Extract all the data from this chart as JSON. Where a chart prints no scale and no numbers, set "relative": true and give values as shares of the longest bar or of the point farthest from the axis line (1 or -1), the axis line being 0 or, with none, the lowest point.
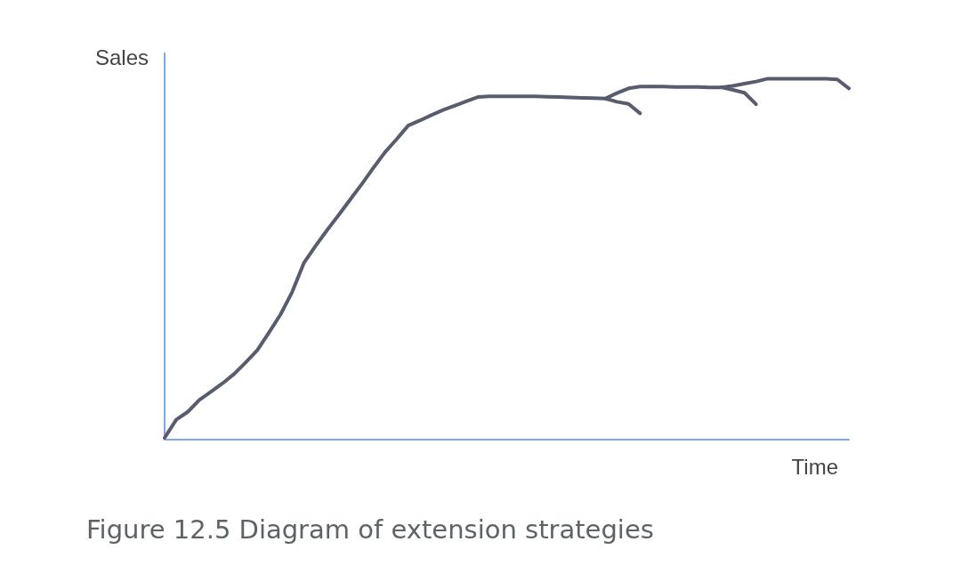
{
  "chart_data": {
    "type": "line",
    "title": "Figure 12.5 Diagram of extension strategies",
    "xlabel": "Time",
    "ylabel": "Sales",
    "relative": true,
    "grid": false,
    "marker": "none",
    "line_style": "solid",
    "categories": [
      null,
      null,
      null,
      null,
      null,
      null,
      null,
      null,
      null,
      null,
      null,
      null,
      null,
      null,
      null,
      null,
      null,
      null,
      null,
      null,
      null,
      null,
      null,
      null,
      null,
      null,
      null,
      null,
      null,
      null,
      null,
      null,
      null,
      null,
      null,
      null,
      null,
      null,
      null,
      null,
      null,
      null,
      null,
      null,
      null,
      null,
      null,
      null,
      null,
      null,
      null,
      null,
      null,
      null,
      null,
      null,
      null,
      null,
      null,
      null
    ],
    "series": [
      {
        "color": "#575d6e",
        "values": [
          0.005,
          0.055,
          0.077,
          0.11,
          0.133,
          0.156,
          0.182,
          0.214,
          0.248,
          0.297,
          0.347,
          0.409,
          0.489,
          0.536,
          0.58,
          0.622,
          0.665,
          0.708,
          0.753,
          0.796,
          0.832,
          0.87,
          0.884,
          0.899,
          0.913,
          0.925,
          0.937,
          0.949,
          0.951,
          0.951,
          0.951,
          0.951,
          0.951,
          0.95,
          0.949,
          0.948,
          0.947,
          0.946,
          0.945,
          0.96,
          0.973,
          0.978,
          0.978,
          0.978,
          0.977,
          0.977,
          0.977,
          0.976,
          0.976,
          0.98,
          0.986,
          0.992,
          1.0,
          1.0,
          1.0,
          1.0,
          1.0,
          1.0,
          0.998,
          0.973
        ]
      },
      {
        "color": "#575d6e",
        "values": [
          null,
          null,
          null,
          null,
          null,
          null,
          null,
          null,
          null,
          null,
          null,
          null,
          null,
          null,
          null,
          null,
          null,
          null,
          null,
          null,
          null,
          null,
          null,
          null,
          null,
          null,
          null,
          null,
          null,
          null,
          null,
          null,
          null,
          null,
          null,
          null,
          null,
          null,
          0.945,
          0.936,
          0.93,
          0.904,
          null,
          null,
          null,
          null,
          null,
          null,
          null,
          null,
          null,
          null,
          null,
          null,
          null,
          null,
          null,
          null,
          null,
          null
        ]
      },
      {
        "color": "#575d6e",
        "values": [
          null,
          null,
          null,
          null,
          null,
          null,
          null,
          null,
          null,
          null,
          null,
          null,
          null,
          null,
          null,
          null,
          null,
          null,
          null,
          null,
          null,
          null,
          null,
          null,
          null,
          null,
          null,
          null,
          null,
          null,
          null,
          null,
          null,
          null,
          null,
          null,
          null,
          null,
          null,
          null,
          null,
          null,
          null,
          null,
          null,
          null,
          null,
          null,
          0.976,
          0.969,
          0.961,
          0.929,
          null,
          null,
          null,
          null,
          null,
          null,
          null,
          null
        ]
      }
    ]
  }
}
